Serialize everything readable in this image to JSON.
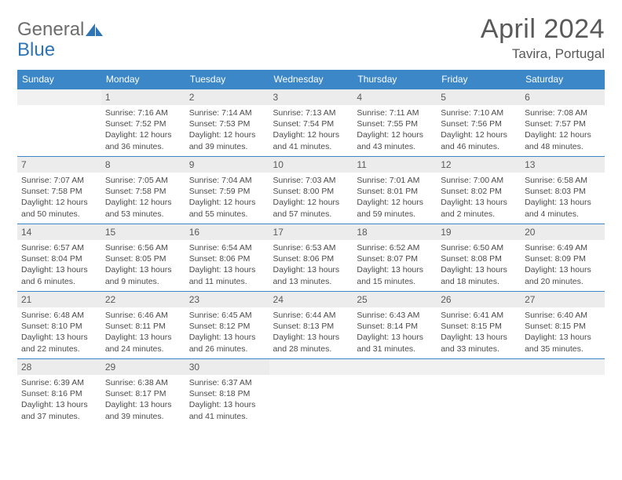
{
  "brand": {
    "word1": "General",
    "word2": "Blue",
    "icon_color": "#2f74b5",
    "text1_color": "#6d6d6d"
  },
  "title": {
    "month": "April 2024",
    "location": "Tavira, Portugal",
    "color": "#595959"
  },
  "calendar": {
    "header_bg": "#3b87c8",
    "header_fg": "#ffffff",
    "daynum_bg": "#ececec",
    "blank_bg": "#f1f1f1",
    "border_color": "#3b87c8",
    "text_color": "#4b4b4b",
    "days": [
      "Sunday",
      "Monday",
      "Tuesday",
      "Wednesday",
      "Thursday",
      "Friday",
      "Saturday"
    ],
    "weeks": [
      [
        null,
        {
          "n": "1",
          "sr": "7:16 AM",
          "ss": "7:52 PM",
          "dl": "12 hours and 36 minutes."
        },
        {
          "n": "2",
          "sr": "7:14 AM",
          "ss": "7:53 PM",
          "dl": "12 hours and 39 minutes."
        },
        {
          "n": "3",
          "sr": "7:13 AM",
          "ss": "7:54 PM",
          "dl": "12 hours and 41 minutes."
        },
        {
          "n": "4",
          "sr": "7:11 AM",
          "ss": "7:55 PM",
          "dl": "12 hours and 43 minutes."
        },
        {
          "n": "5",
          "sr": "7:10 AM",
          "ss": "7:56 PM",
          "dl": "12 hours and 46 minutes."
        },
        {
          "n": "6",
          "sr": "7:08 AM",
          "ss": "7:57 PM",
          "dl": "12 hours and 48 minutes."
        }
      ],
      [
        {
          "n": "7",
          "sr": "7:07 AM",
          "ss": "7:58 PM",
          "dl": "12 hours and 50 minutes."
        },
        {
          "n": "8",
          "sr": "7:05 AM",
          "ss": "7:58 PM",
          "dl": "12 hours and 53 minutes."
        },
        {
          "n": "9",
          "sr": "7:04 AM",
          "ss": "7:59 PM",
          "dl": "12 hours and 55 minutes."
        },
        {
          "n": "10",
          "sr": "7:03 AM",
          "ss": "8:00 PM",
          "dl": "12 hours and 57 minutes."
        },
        {
          "n": "11",
          "sr": "7:01 AM",
          "ss": "8:01 PM",
          "dl": "12 hours and 59 minutes."
        },
        {
          "n": "12",
          "sr": "7:00 AM",
          "ss": "8:02 PM",
          "dl": "13 hours and 2 minutes."
        },
        {
          "n": "13",
          "sr": "6:58 AM",
          "ss": "8:03 PM",
          "dl": "13 hours and 4 minutes."
        }
      ],
      [
        {
          "n": "14",
          "sr": "6:57 AM",
          "ss": "8:04 PM",
          "dl": "13 hours and 6 minutes."
        },
        {
          "n": "15",
          "sr": "6:56 AM",
          "ss": "8:05 PM",
          "dl": "13 hours and 9 minutes."
        },
        {
          "n": "16",
          "sr": "6:54 AM",
          "ss": "8:06 PM",
          "dl": "13 hours and 11 minutes."
        },
        {
          "n": "17",
          "sr": "6:53 AM",
          "ss": "8:06 PM",
          "dl": "13 hours and 13 minutes."
        },
        {
          "n": "18",
          "sr": "6:52 AM",
          "ss": "8:07 PM",
          "dl": "13 hours and 15 minutes."
        },
        {
          "n": "19",
          "sr": "6:50 AM",
          "ss": "8:08 PM",
          "dl": "13 hours and 18 minutes."
        },
        {
          "n": "20",
          "sr": "6:49 AM",
          "ss": "8:09 PM",
          "dl": "13 hours and 20 minutes."
        }
      ],
      [
        {
          "n": "21",
          "sr": "6:48 AM",
          "ss": "8:10 PM",
          "dl": "13 hours and 22 minutes."
        },
        {
          "n": "22",
          "sr": "6:46 AM",
          "ss": "8:11 PM",
          "dl": "13 hours and 24 minutes."
        },
        {
          "n": "23",
          "sr": "6:45 AM",
          "ss": "8:12 PM",
          "dl": "13 hours and 26 minutes."
        },
        {
          "n": "24",
          "sr": "6:44 AM",
          "ss": "8:13 PM",
          "dl": "13 hours and 28 minutes."
        },
        {
          "n": "25",
          "sr": "6:43 AM",
          "ss": "8:14 PM",
          "dl": "13 hours and 31 minutes."
        },
        {
          "n": "26",
          "sr": "6:41 AM",
          "ss": "8:15 PM",
          "dl": "13 hours and 33 minutes."
        },
        {
          "n": "27",
          "sr": "6:40 AM",
          "ss": "8:15 PM",
          "dl": "13 hours and 35 minutes."
        }
      ],
      [
        {
          "n": "28",
          "sr": "6:39 AM",
          "ss": "8:16 PM",
          "dl": "13 hours and 37 minutes."
        },
        {
          "n": "29",
          "sr": "6:38 AM",
          "ss": "8:17 PM",
          "dl": "13 hours and 39 minutes."
        },
        {
          "n": "30",
          "sr": "6:37 AM",
          "ss": "8:18 PM",
          "dl": "13 hours and 41 minutes."
        },
        null,
        null,
        null,
        null
      ]
    ],
    "labels": {
      "sunrise": "Sunrise:",
      "sunset": "Sunset:",
      "daylight": "Daylight:"
    }
  }
}
